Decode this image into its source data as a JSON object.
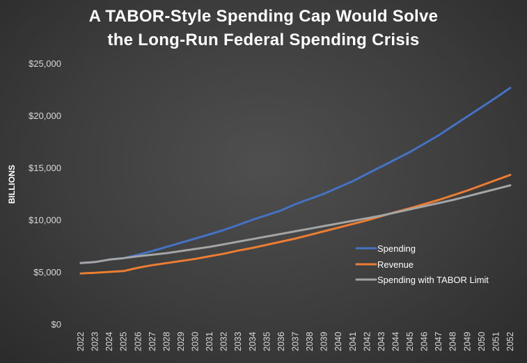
{
  "chart_data": {
    "type": "line",
    "title_lines": [
      "A TABOR-Style Spending Cap Would Solve",
      "the Long-Run Federal Spending Crisis"
    ],
    "xlabel": "",
    "ylabel": "BILLIONS",
    "x": [
      "2022",
      "2023",
      "2024",
      "2025",
      "2026",
      "2027",
      "2028",
      "2029",
      "2030",
      "2031",
      "2032",
      "2033",
      "2034",
      "2035",
      "2036",
      "2037",
      "2038",
      "2039",
      "2040",
      "2041",
      "2042",
      "2043",
      "2044",
      "2045",
      "2046",
      "2047",
      "2048",
      "2049",
      "2050",
      "2051",
      "2052"
    ],
    "ylim": [
      0,
      25000
    ],
    "y_ticks": [
      0,
      5000,
      10000,
      15000,
      20000,
      25000
    ],
    "y_tick_labels": [
      "$0",
      "$5,000",
      "$10,000",
      "$15,000",
      "$20,000",
      "$25,000"
    ],
    "grid": false,
    "legend_position": "bottom-right",
    "series": [
      {
        "name": "Spending",
        "color": "#4472c4",
        "values": [
          5850,
          5950,
          6180,
          6320,
          6650,
          7000,
          7400,
          7800,
          8200,
          8600,
          9020,
          9500,
          10000,
          10450,
          10900,
          11500,
          12000,
          12500,
          13100,
          13700,
          14400,
          15100,
          15800,
          16500,
          17300,
          18100,
          19000,
          19900,
          20800,
          21700,
          22650
        ]
      },
      {
        "name": "Revenue",
        "color": "#ed7d31",
        "values": [
          4850,
          4920,
          5000,
          5080,
          5400,
          5650,
          5850,
          6050,
          6250,
          6500,
          6750,
          7050,
          7300,
          7600,
          7900,
          8200,
          8550,
          8900,
          9250,
          9600,
          9950,
          10350,
          10750,
          11100,
          11500,
          11900,
          12350,
          12800,
          13300,
          13800,
          14300
        ]
      },
      {
        "name": "Spending with TABOR Limit",
        "color": "#a5a5a5",
        "values": [
          5850,
          5950,
          6180,
          6320,
          6500,
          6650,
          6800,
          7000,
          7200,
          7400,
          7650,
          7900,
          8150,
          8400,
          8650,
          8900,
          9150,
          9400,
          9650,
          9900,
          10150,
          10400,
          10700,
          11000,
          11300,
          11600,
          11900,
          12250,
          12600,
          12950,
          13300
        ]
      }
    ]
  }
}
